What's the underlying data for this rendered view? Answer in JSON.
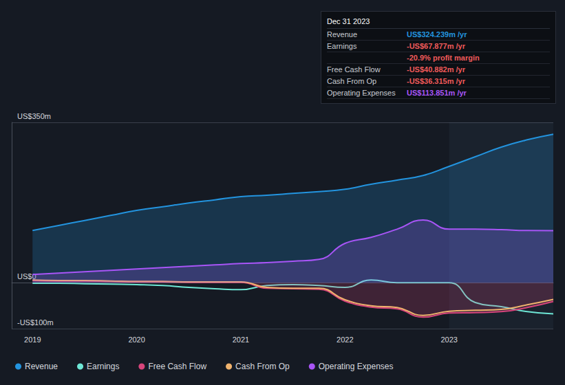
{
  "chart_data": {
    "type": "line",
    "x": [
      2019,
      2019.25,
      2019.5,
      2019.75,
      2020,
      2020.25,
      2020.5,
      2020.75,
      2021,
      2021.25,
      2021.5,
      2021.75,
      2022,
      2022.25,
      2022.5,
      2022.75,
      2023,
      2023.25,
      2023.5,
      2023.75,
      2024
    ],
    "series": [
      {
        "name": "Revenue",
        "color": "#2394df",
        "area": true,
        "values": [
          114,
          125,
          136,
          147,
          158,
          166,
          174,
          181,
          188,
          191,
          195,
          199,
          204,
          215,
          224,
          234,
          254,
          275,
          296,
          312,
          324.239
        ]
      },
      {
        "name": "Earnings",
        "color": "#6ee7d6",
        "values": [
          -1,
          -1,
          -2,
          -3,
          -4,
          -6,
          -10,
          -13,
          -15,
          -6,
          -4,
          -6,
          -10,
          6,
          0,
          0,
          0,
          -43,
          -52,
          -63,
          -67.877
        ]
      },
      {
        "name": "Free Cash Flow",
        "color": "#d6457b",
        "area": true,
        "values": [
          5,
          4,
          4,
          3,
          2,
          2,
          1,
          1,
          1,
          -12,
          -13,
          -14,
          -40,
          -53,
          -57,
          -75,
          -66,
          -65,
          -63,
          -54,
          -40.882
        ]
      },
      {
        "name": "Cash From Op",
        "color": "#f0b36e",
        "values": [
          6,
          5,
          5,
          4,
          3,
          3,
          2,
          2,
          2,
          -10,
          -12,
          -12,
          -37,
          -50,
          -54,
          -71,
          -62,
          -60,
          -58,
          -48,
          -36.315
        ]
      },
      {
        "name": "Operating Expenses",
        "color": "#a855f7",
        "area": true,
        "values": [
          18,
          21,
          24,
          27,
          30,
          33,
          36,
          39,
          42,
          44,
          47,
          51,
          86,
          99,
          117,
          137,
          117,
          117,
          116,
          114,
          113.851
        ]
      }
    ],
    "xlim": [
      2018.8,
      2024
    ],
    "xticks": [
      2019,
      2020,
      2021,
      2022,
      2023
    ],
    "ylim": [
      -100,
      350
    ],
    "yticks": [
      {
        "value": -100,
        "label": "-US$100m"
      },
      {
        "value": 0,
        "label": "US$0"
      },
      {
        "value": 350,
        "label": "US$350m"
      }
    ],
    "grid": true,
    "legend": "bottom",
    "annotation": {
      "title": "Dec 31 2023",
      "rows": [
        {
          "label": "Revenue",
          "value": "US$324.239m /yr",
          "color": "#2394df"
        },
        {
          "label": "Earnings",
          "value": "-US$67.877m /yr",
          "color": "#f05a5a"
        },
        {
          "label": "",
          "value": "-20.9% profit margin",
          "color": "#f05a5a"
        },
        {
          "label": "Free Cash Flow",
          "value": "-US$40.882m /yr",
          "color": "#f05a5a"
        },
        {
          "label": "Cash From Op",
          "value": "-US$36.315m /yr",
          "color": "#f05a5a"
        },
        {
          "label": "Operating Expenses",
          "value": "US$113.851m /yr",
          "color": "#a855f7"
        }
      ]
    }
  }
}
